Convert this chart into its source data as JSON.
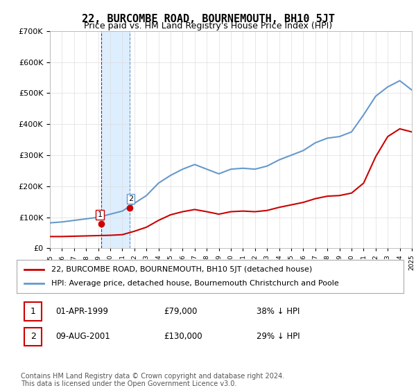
{
  "title": "22, BURCOMBE ROAD, BOURNEMOUTH, BH10 5JT",
  "subtitle": "Price paid vs. HM Land Registry's House Price Index (HPI)",
  "red_label": "22, BURCOMBE ROAD, BOURNEMOUTH, BH10 5JT (detached house)",
  "blue_label": "HPI: Average price, detached house, Bournemouth Christchurch and Poole",
  "footer": "Contains HM Land Registry data © Crown copyright and database right 2024.\nThis data is licensed under the Open Government Licence v3.0.",
  "transactions": [
    {
      "num": "1",
      "date": "01-APR-1999",
      "price": "£79,000",
      "pct": "38% ↓ HPI"
    },
    {
      "num": "2",
      "date": "09-AUG-2001",
      "price": "£130,000",
      "pct": "29% ↓ HPI"
    }
  ],
  "hpi_years": [
    1995,
    1996,
    1997,
    1998,
    1999,
    2000,
    2001,
    2002,
    2003,
    2004,
    2005,
    2006,
    2007,
    2008,
    2009,
    2010,
    2011,
    2012,
    2013,
    2014,
    2015,
    2016,
    2017,
    2018,
    2019,
    2020,
    2021,
    2022,
    2023,
    2024,
    2025
  ],
  "hpi_values": [
    82000,
    85000,
    90000,
    95000,
    100000,
    110000,
    120000,
    145000,
    170000,
    210000,
    235000,
    255000,
    270000,
    255000,
    240000,
    255000,
    258000,
    255000,
    265000,
    285000,
    300000,
    315000,
    340000,
    355000,
    360000,
    375000,
    430000,
    490000,
    520000,
    540000,
    510000
  ],
  "red_years": [
    1995,
    1996,
    1997,
    1998,
    1999,
    2000,
    2001,
    2002,
    2003,
    2004,
    2005,
    2006,
    2007,
    2008,
    2009,
    2010,
    2011,
    2012,
    2013,
    2014,
    2015,
    2016,
    2017,
    2018,
    2019,
    2020,
    2021,
    2022,
    2023,
    2024,
    2025
  ],
  "red_values": [
    38000,
    38000,
    39000,
    40000,
    41000,
    42000,
    44000,
    55000,
    68000,
    90000,
    108000,
    118000,
    125000,
    118000,
    110000,
    118000,
    120000,
    118000,
    122000,
    132000,
    140000,
    148000,
    160000,
    168000,
    170000,
    178000,
    210000,
    295000,
    360000,
    385000,
    375000
  ],
  "purchase1_x": 1999.25,
  "purchase1_y": 79000,
  "purchase2_x": 2001.6,
  "purchase2_y": 130000,
  "shade_x1": 1999.25,
  "shade_x2": 2001.6,
  "ylim": [
    0,
    700000
  ],
  "xlim": [
    1995,
    2025
  ],
  "red_color": "#cc0000",
  "blue_color": "#6699cc",
  "shade_color": "#ddeeff",
  "grid_color": "#dddddd",
  "bg_color": "#ffffff",
  "title_fontsize": 11,
  "subtitle_fontsize": 9,
  "axis_fontsize": 8,
  "legend_fontsize": 8,
  "footer_fontsize": 7
}
